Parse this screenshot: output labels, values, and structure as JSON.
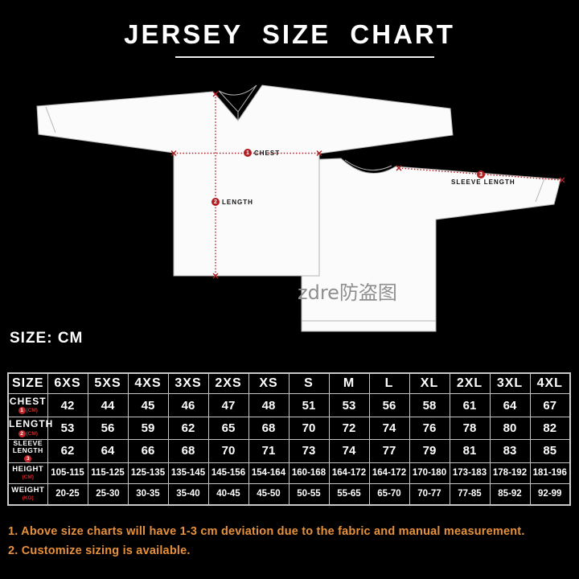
{
  "title": "JERSEY SIZE CHART",
  "size_unit": "SIZE: CM",
  "colors": {
    "background": "#000000",
    "measure_red": "#b01e23",
    "table_border": "#c4c4c4",
    "note_orange": "#e8913c",
    "jersey_fill": "#fbfbfb",
    "watermark_gray": "#8f8f8f"
  },
  "diagram": {
    "watermark": "zdre防盗图",
    "chest": {
      "marker": "1",
      "label": "CHEST"
    },
    "length": {
      "marker": "2",
      "label": "LENGTH"
    },
    "sleeve": {
      "marker": "3",
      "label": "SLEEVE LENGTH"
    }
  },
  "table": {
    "corner": "SIZE",
    "columns": [
      "6XS",
      "5XS",
      "4XS",
      "3XS",
      "2XS",
      "XS",
      "S",
      "M",
      "L",
      "XL",
      "2XL",
      "3XL",
      "4XL"
    ],
    "rows": [
      {
        "label": "CHEST",
        "marker": "1",
        "unit": "(CM)",
        "values": [
          "42",
          "44",
          "45",
          "46",
          "47",
          "48",
          "51",
          "53",
          "56",
          "58",
          "61",
          "64",
          "67"
        ]
      },
      {
        "label": "LENGTH",
        "marker": "2",
        "unit": "(CM)",
        "values": [
          "53",
          "56",
          "59",
          "62",
          "65",
          "68",
          "70",
          "72",
          "74",
          "76",
          "78",
          "80",
          "82"
        ]
      },
      {
        "label": "SLEEVE LENGTH",
        "marker": "3",
        "unit": "",
        "values": [
          "62",
          "64",
          "66",
          "68",
          "70",
          "71",
          "73",
          "74",
          "77",
          "79",
          "81",
          "83",
          "85"
        ]
      },
      {
        "label": "HEIGHT",
        "marker": "",
        "unit": "(CM)",
        "values": [
          "105-115",
          "115-125",
          "125-135",
          "135-145",
          "145-156",
          "154-164",
          "160-168",
          "164-172",
          "164-172",
          "170-180",
          "173-183",
          "178-192",
          "181-196"
        ]
      },
      {
        "label": "WEIGHT",
        "marker": "",
        "unit": "(KG)",
        "values": [
          "20-25",
          "25-30",
          "30-35",
          "35-40",
          "40-45",
          "45-50",
          "50-55",
          "55-65",
          "65-70",
          "70-77",
          "77-85",
          "85-92",
          "92-99"
        ]
      }
    ]
  },
  "notes": [
    "1. Above size charts will have 1-3 cm deviation due to the fabric and manual measurement.",
    "2. Customize sizing is available."
  ],
  "chart_data": {
    "type": "table",
    "title": "JERSEY SIZE CHART",
    "unit": "CM",
    "categories": [
      "6XS",
      "5XS",
      "4XS",
      "3XS",
      "2XS",
      "XS",
      "S",
      "M",
      "L",
      "XL",
      "2XL",
      "3XL",
      "4XL"
    ],
    "series": [
      {
        "name": "CHEST (CM)",
        "values": [
          42,
          44,
          45,
          46,
          47,
          48,
          51,
          53,
          56,
          58,
          61,
          64,
          67
        ]
      },
      {
        "name": "LENGTH (CM)",
        "values": [
          53,
          56,
          59,
          62,
          65,
          68,
          70,
          72,
          74,
          76,
          78,
          80,
          82
        ]
      },
      {
        "name": "SLEEVE LENGTH (CM)",
        "values": [
          62,
          64,
          66,
          68,
          70,
          71,
          73,
          74,
          77,
          79,
          81,
          83,
          85
        ]
      },
      {
        "name": "HEIGHT (CM)",
        "values": [
          "105-115",
          "115-125",
          "125-135",
          "135-145",
          "145-156",
          "154-164",
          "160-168",
          "164-172",
          "164-172",
          "170-180",
          "173-183",
          "178-192",
          "181-196"
        ]
      },
      {
        "name": "WEIGHT (KG)",
        "values": [
          "20-25",
          "25-30",
          "30-35",
          "35-40",
          "40-45",
          "45-50",
          "50-55",
          "55-65",
          "65-70",
          "70-77",
          "77-85",
          "85-92",
          "92-99"
        ]
      }
    ],
    "notes": [
      "1. Above size charts will have 1-3 cm deviation due to the fabric and manual measurement.",
      "2. Customize sizing is available."
    ]
  }
}
